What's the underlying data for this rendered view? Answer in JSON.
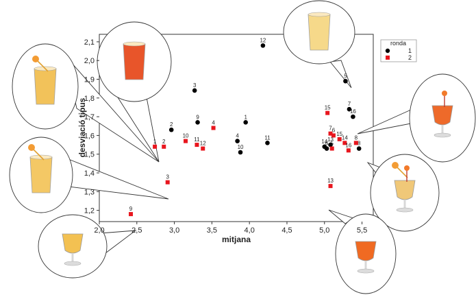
{
  "chart_data": {
    "type": "scatter",
    "xlabel": "mitjana",
    "ylabel": "desviació tipus",
    "xlim": [
      2.0,
      5.65
    ],
    "ylim": [
      1.14,
      2.14
    ],
    "x_ticks": [
      "2,0",
      "2,5",
      "3,0",
      "3,5",
      "4,0",
      "4,5",
      "5,0",
      "5,5"
    ],
    "x_tick_values": [
      2.0,
      2.5,
      3.0,
      3.5,
      4.0,
      4.5,
      5.0,
      5.5
    ],
    "y_ticks": [
      "1,2",
      "1,3",
      "1,4",
      "1,5",
      "1,6",
      "1,7",
      "1,8",
      "1,9",
      "2,0",
      "2,1"
    ],
    "y_tick_values": [
      1.2,
      1.3,
      1.4,
      1.5,
      1.6,
      1.7,
      1.8,
      1.9,
      2.0,
      2.1
    ],
    "legend": {
      "title": "ronda",
      "placement": "top-right"
    },
    "series": [
      {
        "name": "1",
        "marker": "circle",
        "color": "#000000",
        "points": [
          {
            "label": "12",
            "x": 4.18,
            "y": 2.08
          },
          {
            "label": "5",
            "x": 5.28,
            "y": 1.89
          },
          {
            "label": "3",
            "x": 3.27,
            "y": 1.84
          },
          {
            "label": "7",
            "x": 5.33,
            "y": 1.74
          },
          {
            "label": "16",
            "x": 5.38,
            "y": 1.7
          },
          {
            "label": "9",
            "x": 3.31,
            "y": 1.67
          },
          {
            "label": "1",
            "x": 3.95,
            "y": 1.67
          },
          {
            "label": "2",
            "x": 2.96,
            "y": 1.63
          },
          {
            "label": "4",
            "x": 3.84,
            "y": 1.57
          },
          {
            "label": "11",
            "x": 4.24,
            "y": 1.56
          },
          {
            "label": "10",
            "x": 3.88,
            "y": 1.51
          },
          {
            "label": "13",
            "x": 5.08,
            "y": 1.55
          },
          {
            "label": "14",
            "x": 5.0,
            "y": 1.54
          },
          {
            "label": "6",
            "x": 5.03,
            "y": 1.53
          },
          {
            "label": "8",
            "x": 5.46,
            "y": 1.53
          }
        ]
      },
      {
        "name": "2",
        "marker": "square",
        "color": "#e8161e",
        "points": [
          {
            "label": "15",
            "x": 5.04,
            "y": 1.72
          },
          {
            "label": "4",
            "x": 3.52,
            "y": 1.64
          },
          {
            "label": "7",
            "x": 5.08,
            "y": 1.61
          },
          {
            "label": "6",
            "x": 5.12,
            "y": 1.6
          },
          {
            "label": "15",
            "x": 5.2,
            "y": 1.58
          },
          {
            "label": "14",
            "x": 5.27,
            "y": 1.56
          },
          {
            "label": "8",
            "x": 5.42,
            "y": 1.56
          },
          {
            "label": "10",
            "x": 3.15,
            "y": 1.57
          },
          {
            "label": "11",
            "x": 3.3,
            "y": 1.55
          },
          {
            "label": "12",
            "x": 3.38,
            "y": 1.53
          },
          {
            "label": "1",
            "x": 2.74,
            "y": 1.54
          },
          {
            "label": "2",
            "x": 2.86,
            "y": 1.54
          },
          {
            "label": "5",
            "x": 5.1,
            "y": 1.53
          },
          {
            "label": "16",
            "x": 5.32,
            "y": 1.52
          },
          {
            "label": "3",
            "x": 2.91,
            "y": 1.35
          },
          {
            "label": "13",
            "x": 5.08,
            "y": 1.33
          },
          {
            "label": "9",
            "x": 2.42,
            "y": 1.18
          }
        ]
      }
    ],
    "photo_callouts": [
      {
        "drink": "orange-juice-tumbler",
        "color": "#e8552a"
      },
      {
        "drink": "pale-juice-with-straw",
        "color": "#f2c25a"
      },
      {
        "drink": "pale-juice-with-umbrella",
        "color": "#f4c865"
      },
      {
        "drink": "juice-goblet",
        "color": "#f3c152"
      },
      {
        "drink": "lemonade-glass-with-ice",
        "color": "#f6d98a"
      },
      {
        "drink": "orange-cocktail-goblet",
        "color": "#ee6a2a"
      },
      {
        "drink": "pale-cocktail-with-umbrella",
        "color": "#f0c878"
      },
      {
        "drink": "orange-juice-goblet",
        "color": "#f06a22"
      }
    ]
  }
}
